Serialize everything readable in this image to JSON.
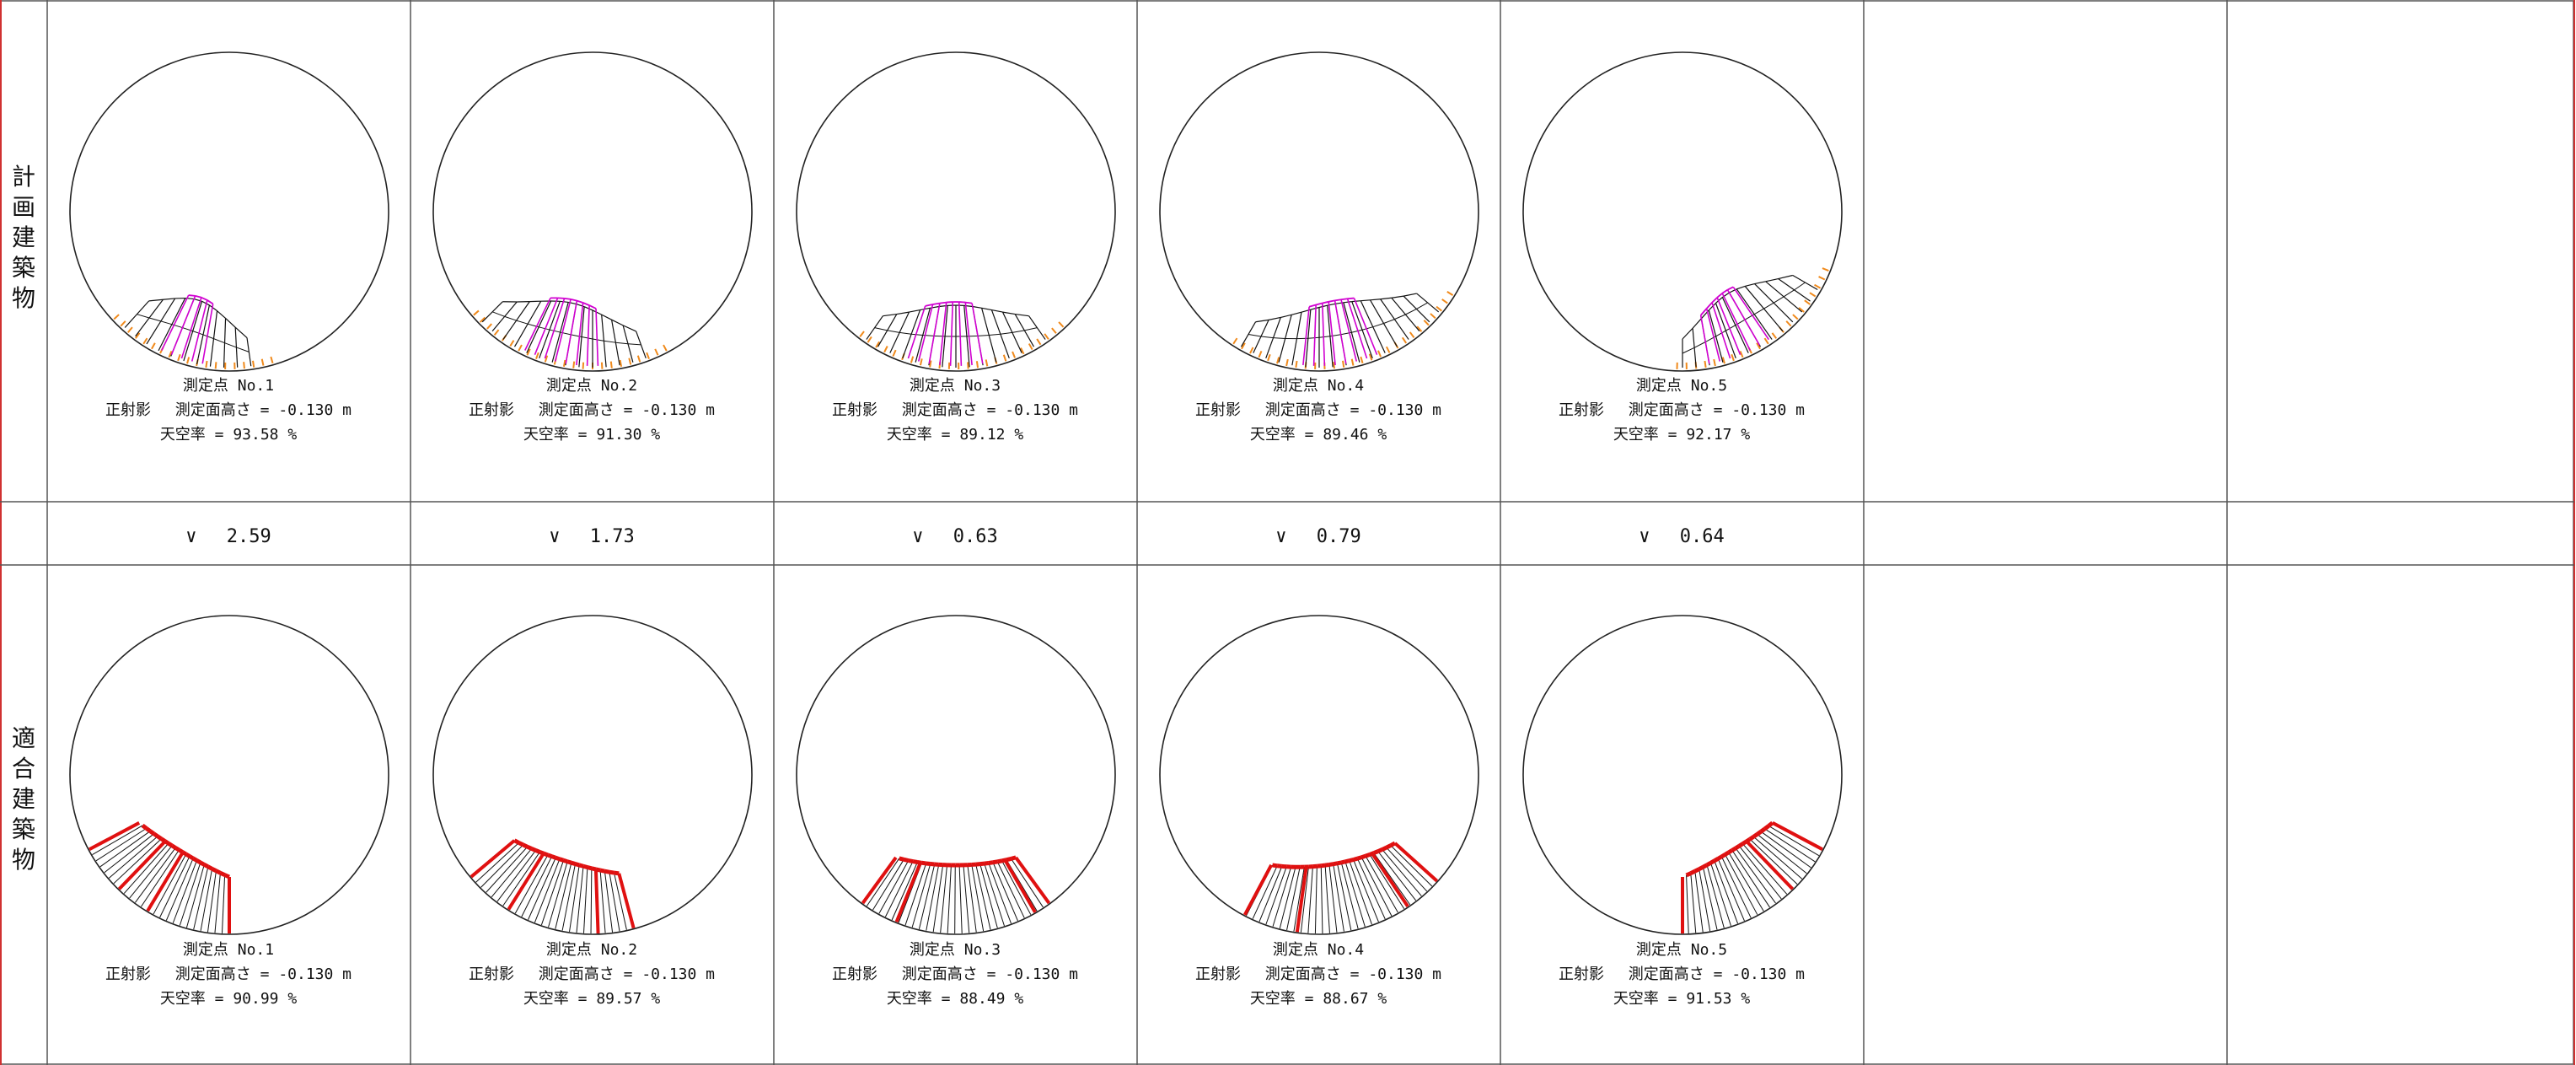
{
  "rows": {
    "planned_label": "計画建築物",
    "compliant_label": "適合建築物"
  },
  "columns": [
    {
      "planned": {
        "point": "測定点 No.1",
        "condition": "正射影　 測定面高さ = -0.130 m",
        "sky_ratio": "天空率 = 93.58 %"
      },
      "compliant": {
        "point": "測定点 No.1",
        "condition": "正射影　 測定面高さ = -0.130 m",
        "sky_ratio": "天空率 = 90.99 %"
      },
      "difference": "∨　 2.59",
      "planned_arc": [
        172,
        225
      ],
      "planned_bars": [
        190,
        208
      ],
      "compliant_arc": [
        180,
        242
      ],
      "compliant_ribs": [
        180,
        211,
        224,
        242
      ]
    },
    {
      "planned": {
        "point": "測定点 No.2",
        "condition": "正射影　 測定面高さ = -0.130 m",
        "sky_ratio": "天空率 = 91.30 %"
      },
      "compliant": {
        "point": "測定点 No.2",
        "condition": "正射影　 測定面高さ = -0.130 m",
        "sky_ratio": "天空率 = 89.57 %"
      },
      "difference": "∨　 1.73",
      "planned_arc": [
        160,
        225
      ],
      "planned_bars": [
        178,
        208
      ],
      "compliant_arc": [
        165,
        230
      ],
      "compliant_ribs": [
        165,
        178,
        212,
        230
      ]
    },
    {
      "planned": {
        "point": "測定点 No.3",
        "condition": "正射影　 測定面高さ = -0.130 m",
        "sky_ratio": "天空率 = 89.12 %"
      },
      "compliant": {
        "point": "測定点 No.3",
        "condition": "正射影　 測定面高さ = -0.130 m",
        "sky_ratio": "天空率 = 88.49 %"
      },
      "difference": "∨　 0.63",
      "planned_arc": [
        145,
        215
      ],
      "planned_bars": [
        170,
        200
      ],
      "compliant_arc": [
        144,
        216
      ],
      "compliant_ribs": [
        144,
        150,
        202,
        216
      ]
    },
    {
      "planned": {
        "point": "測定点 No.4",
        "condition": "正射影　 測定面高さ = -0.130 m",
        "sky_ratio": "天空率 = 89.46 %"
      },
      "compliant": {
        "point": "測定点 No.4",
        "condition": "正射影　 測定面高さ = -0.130 m",
        "sky_ratio": "天空率 = 88.67 %"
      },
      "difference": "∨　 0.79",
      "planned_arc": [
        130,
        210
      ],
      "planned_bars": [
        158,
        188
      ],
      "compliant_arc": [
        132,
        208
      ],
      "compliant_ribs": [
        132,
        146,
        188,
        208
      ]
    },
    {
      "planned": {
        "point": "測定点 No.5",
        "condition": "正射影　 測定面高さ = -0.130 m",
        "sky_ratio": "天空率 = 92.17 %"
      },
      "compliant": {
        "point": "測定点 No.5",
        "condition": "正射影　 測定面高さ = -0.130 m",
        "sky_ratio": "天空率 = 91.53 %"
      },
      "difference": "∨　 0.64",
      "planned_arc": [
        120,
        180
      ],
      "planned_bars": [
        146,
        172
      ],
      "compliant_arc": [
        118,
        180
      ],
      "compliant_ribs": [
        118,
        136,
        180
      ]
    }
  ],
  "colors": {
    "grid": "#555555",
    "border": "#d03030",
    "circle": "#222222",
    "building": "#111111",
    "building_highlight": "#d000d0",
    "ground_marks": "#f08a1c",
    "compliant": "#e01010"
  }
}
